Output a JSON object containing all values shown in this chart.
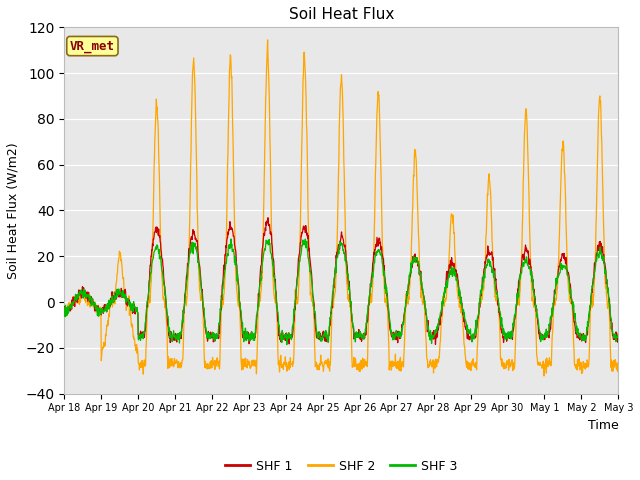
{
  "title": "Soil Heat Flux",
  "xlabel": "Time",
  "ylabel": "Soil Heat Flux (W/m2)",
  "ylim": [
    -40,
    120
  ],
  "yticks": [
    -40,
    -20,
    0,
    20,
    40,
    60,
    80,
    100,
    120
  ],
  "legend_labels": [
    "SHF 1",
    "SHF 2",
    "SHF 3"
  ],
  "legend_colors": [
    "#cc0000",
    "#ffa500",
    "#00bb00"
  ],
  "annotation_text": "VR_met",
  "annotation_fg": "#8b0000",
  "annotation_bg": "#ffff99",
  "annotation_edge": "#8b6914",
  "plot_bg": "#e8e8e8",
  "xtick_labels": [
    "Apr 18",
    "Apr 19",
    "Apr 20",
    "Apr 21",
    "Apr 22",
    "Apr 23",
    "Apr 24",
    "Apr 25",
    "Apr 26",
    "Apr 27",
    "Apr 28",
    "Apr 29",
    "Apr 30",
    "May 1",
    "May 2",
    "May 3"
  ],
  "n_days": 15,
  "dt_hours": 0.25,
  "shf1_amps": [
    4,
    4,
    32,
    30,
    33,
    35,
    33,
    28,
    27,
    19,
    17,
    22,
    22,
    20,
    25,
    4
  ],
  "shf2_amps": [
    4,
    21,
    87,
    106,
    106,
    109,
    107,
    98,
    91,
    65,
    38,
    54,
    83,
    69,
    89,
    4
  ],
  "shf3_amps": [
    4,
    4,
    24,
    25,
    25,
    26,
    26,
    25,
    22,
    19,
    14,
    17,
    18,
    16,
    22,
    4
  ],
  "shf1_night": -15,
  "shf2_night": -27,
  "shf3_night": -15,
  "shf2_narrow_factor": 4.5
}
